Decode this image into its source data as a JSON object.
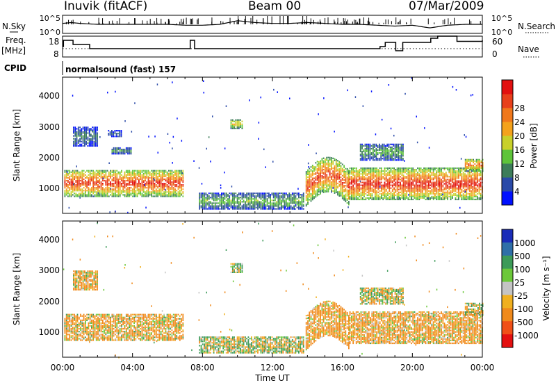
{
  "header": {
    "radar": "Inuvik (fitACF)",
    "beam": "Beam 00",
    "date": "07/Mar/2009"
  },
  "top_panel": {
    "left_label": "N.Sky",
    "right_label": "N.Search",
    "ticks_left": [
      "10^5",
      "10^0"
    ],
    "ticks_right": [
      "10^5",
      "10^0"
    ]
  },
  "freq_panel": {
    "left_label_1": "Freq.",
    "left_label_2": "[MHz]",
    "right_label": "Nave",
    "ticks_left": [
      "18",
      "8"
    ],
    "ticks_right": [
      "60",
      "0"
    ]
  },
  "cpid": {
    "label": "CPID",
    "value": "normalsound (fast) 157"
  },
  "x_axis": {
    "title": "Time UT",
    "ticks": [
      "00:00",
      "04:00",
      "08:00",
      "12:00",
      "16:00",
      "20:00",
      "00:00"
    ]
  },
  "power_panel": {
    "ylabel": "Slant Range [km]",
    "yticks": [
      "1000",
      "2000",
      "3000",
      "4000"
    ],
    "colorbar_title": "Power [dB]",
    "colorbar_ticks": [
      "4",
      "8",
      "12",
      "16",
      "20",
      "24",
      "28"
    ],
    "colors": [
      "#0010ff",
      "#2a4aa8",
      "#3d7d5a",
      "#5ec43a",
      "#c8d02a",
      "#f4a21c",
      "#f0781c",
      "#e8401c",
      "#e21010"
    ]
  },
  "velocity_panel": {
    "ylabel": "Slant Range [km]",
    "yticks": [
      "1000",
      "2000",
      "3000",
      "4000"
    ],
    "colorbar_title": "Velocity [m s⁻¹]",
    "colorbar_ticks": [
      "1000",
      "500",
      "100",
      "25",
      "-25",
      "-100",
      "-500",
      "-1000"
    ],
    "colors": [
      "#1a2cb8",
      "#2f6fa8",
      "#3c9a58",
      "#6cc83a",
      "#c4c4c4",
      "#f0b020",
      "#f08a1c",
      "#f05018",
      "#e41010"
    ]
  },
  "chart_data": [
    {
      "type": "line",
      "title": "N.Sky / N.Search",
      "xlabel": "",
      "ylabel": "",
      "x_range_hours": [
        0,
        24
      ],
      "yscale": "log",
      "ylim": [
        "10^0",
        "10^5"
      ],
      "series": [
        {
          "name": "N.Sky",
          "x": [
            0,
            0.5,
            1,
            2,
            3,
            4,
            5,
            6,
            7,
            8,
            9,
            10,
            11,
            12,
            13,
            14,
            15,
            16,
            17,
            18,
            19,
            20,
            21,
            22,
            23,
            24
          ],
          "level": [
            0.55,
            0.6,
            0.55,
            0.5,
            0.5,
            0.5,
            0.5,
            0.5,
            0.45,
            0.45,
            0.5,
            0.7,
            0.6,
            0.55,
            0.55,
            0.6,
            0.55,
            0.5,
            0.5,
            0.45,
            0.4,
            0.45,
            0.3,
            0.45,
            0.5,
            0.5
          ]
        }
      ]
    },
    {
      "type": "line",
      "title": "Freq / Nave",
      "xlabel": "",
      "ylabel": "Freq. [MHz]",
      "x_range_hours": [
        0,
        24
      ],
      "ylim": [
        8,
        18
      ],
      "y2lim": [
        0,
        60
      ],
      "series": [
        {
          "name": "Freq.",
          "x": [
            0,
            0.05,
            0.6,
            1.55,
            6.8,
            7.3,
            7.55,
            18.15,
            18.45,
            19.05,
            19.45,
            21.05,
            21.45,
            22.55,
            24
          ],
          "y": [
            13,
            16,
            14,
            12,
            12,
            16,
            12,
            13,
            15,
            11,
            15,
            17,
            18,
            15.5,
            16
          ]
        },
        {
          "name": "Nave",
          "x": [
            0,
            24
          ],
          "y": [
            32,
            32
          ]
        }
      ]
    },
    {
      "type": "heatmap",
      "title": "Power [dB]",
      "xlabel": "Time UT",
      "ylabel": "Slant Range [km]",
      "x_range_hours": [
        0,
        24
      ],
      "ylim": [
        180,
        4500
      ],
      "color_scale": [
        0,
        30
      ],
      "blobs": [
        {
          "t0": 0.1,
          "t1": 6.9,
          "r0": 700,
          "r1": 1550,
          "peak": 27
        },
        {
          "t0": 7.8,
          "t1": 13.8,
          "r0": 300,
          "r1": 800,
          "peak": 12
        },
        {
          "t0": 13.9,
          "t1": 16.4,
          "r0": 600,
          "r1": 1700,
          "peak": 26
        },
        {
          "t0": 16.4,
          "t1": 24,
          "r0": 600,
          "r1": 1600,
          "peak": 28
        },
        {
          "t0": 9.6,
          "t1": 10.3,
          "r0": 2850,
          "r1": 3150,
          "peak": 18
        },
        {
          "t0": 0.6,
          "t1": 2.0,
          "r0": 2300,
          "r1": 2900,
          "peak": 8
        },
        {
          "t0": 2.6,
          "t1": 3.4,
          "r0": 2600,
          "r1": 2800,
          "peak": 6
        },
        {
          "t0": 2.8,
          "t1": 3.9,
          "r0": 2050,
          "r1": 2250,
          "peak": 10
        },
        {
          "t0": 17.0,
          "t1": 19.5,
          "r0": 1850,
          "r1": 2350,
          "peak": 11
        },
        {
          "t0": 23.0,
          "t1": 24,
          "r0": 1500,
          "r1": 1900,
          "peak": 24
        }
      ]
    },
    {
      "type": "heatmap",
      "title": "Velocity [m s⁻¹]",
      "xlabel": "Time UT",
      "ylabel": "Slant Range [km]",
      "x_range_hours": [
        0,
        24
      ],
      "ylim": [
        180,
        4500
      ],
      "color_scale": [
        -1000,
        1000
      ],
      "blobs": [
        {
          "t0": 0.1,
          "t1": 6.9,
          "r0": 700,
          "r1": 1550,
          "v": -150
        },
        {
          "t0": 7.8,
          "t1": 13.8,
          "r0": 300,
          "r1": 800,
          "v": 40
        },
        {
          "t0": 13.9,
          "t1": 16.4,
          "r0": 600,
          "r1": 1700,
          "v": -200
        },
        {
          "t0": 16.4,
          "t1": 24,
          "r0": 600,
          "r1": 1600,
          "v": -180
        },
        {
          "t0": 9.6,
          "t1": 10.3,
          "r0": 2850,
          "r1": 3150,
          "v": 100
        },
        {
          "t0": 0.6,
          "t1": 2.0,
          "r0": 2300,
          "r1": 2900,
          "v": -150
        },
        {
          "t0": 17.0,
          "t1": 19.5,
          "r0": 1850,
          "r1": 2350,
          "v": 10
        },
        {
          "t0": 23.0,
          "t1": 24,
          "r0": 1500,
          "r1": 1900,
          "v": 0
        }
      ]
    }
  ]
}
